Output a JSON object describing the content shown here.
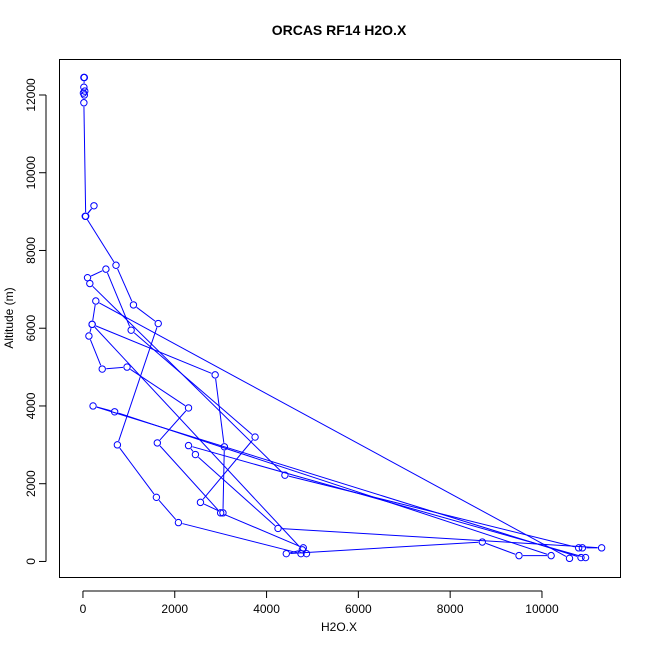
{
  "chart_data": {
    "type": "line",
    "title": "ORCAS RF14 H2O.X",
    "xlabel": "H2O.X",
    "ylabel": "Altitude (m)",
    "xlim": [
      -500,
      11700
    ],
    "ylim": [
      -400,
      12900
    ],
    "x_ticks": [
      0,
      2000,
      4000,
      6000,
      8000,
      10000
    ],
    "y_ticks": [
      0,
      2000,
      4000,
      6000,
      8000,
      10000,
      12000
    ],
    "grid": false,
    "legend": "none",
    "color": "#0000ff",
    "marker": "open-circle",
    "series": [
      {
        "x": [
          20,
          30,
          20,
          40,
          10,
          30,
          20,
          60,
          240,
          50,
          720,
          1100,
          1640,
          750,
          1600,
          2080,
          4750,
          4870,
          4800,
          3000,
          1620,
          2300,
          960,
          420,
          130,
          200,
          2880,
          3080,
          3050,
          2560,
          3750,
          1050,
          500,
          100,
          150,
          4400,
          10800,
          10880,
          11300,
          4250,
          2450,
          2300,
          10950,
          10850,
          220,
          690,
          10200,
          9500,
          8700,
          4430,
          4780,
          200,
          280,
          10600
        ],
        "y": [
          12450,
          12450,
          12200,
          12100,
          12050,
          12000,
          11800,
          8880,
          9150,
          8880,
          7620,
          6600,
          6120,
          3000,
          1650,
          1000,
          200,
          200,
          350,
          1250,
          3050,
          3950,
          5000,
          4950,
          5800,
          6100,
          4800,
          2950,
          1250,
          1520,
          3200,
          5950,
          7520,
          7300,
          7150,
          2220,
          350,
          350,
          350,
          850,
          2750,
          2980,
          100,
          100,
          4000,
          3850,
          150,
          150,
          500,
          200,
          300,
          6100,
          6700,
          80
        ]
      }
    ]
  }
}
